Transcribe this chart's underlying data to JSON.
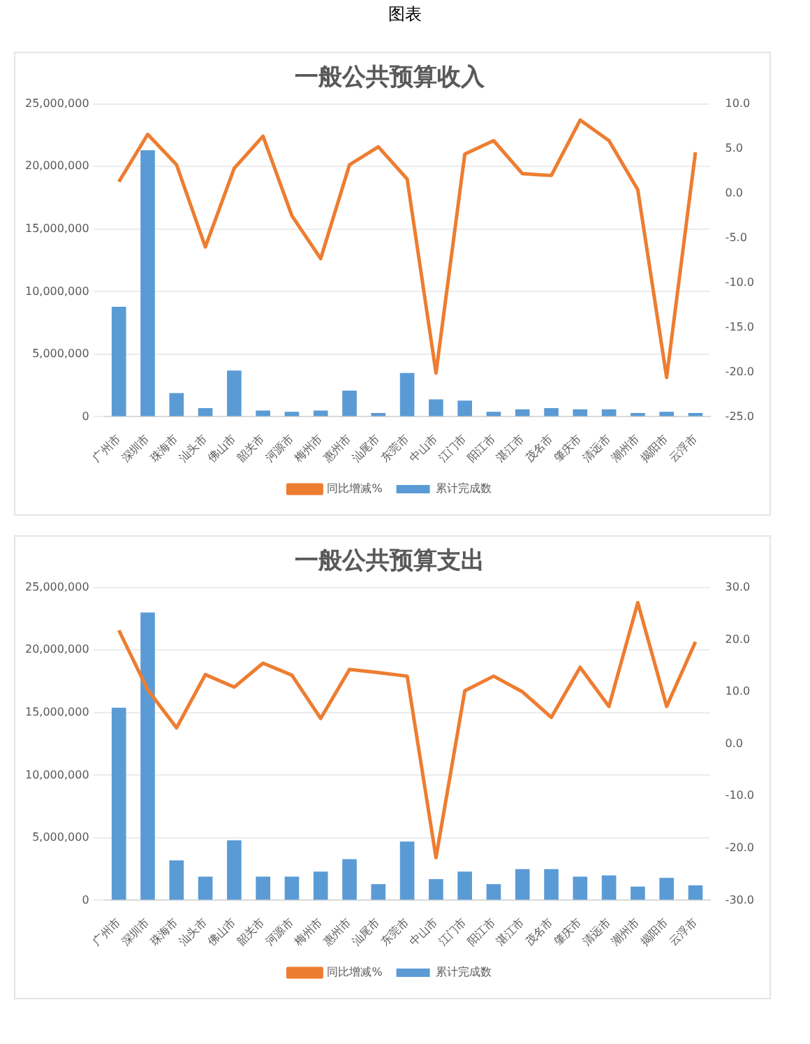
{
  "chart_data": [
    {
      "type": "bar",
      "title": "一般公共预算收入",
      "annotations": [
        "图表"
      ],
      "categories": [
        "广州市",
        "深圳市",
        "珠海市",
        "汕头市",
        "佛山市",
        "韶关市",
        "河源市",
        "梅州市",
        "惠州市",
        "汕尾市",
        "东莞市",
        "中山市",
        "江门市",
        "阳江市",
        "湛江市",
        "茂名市",
        "肇庆市",
        "清远市",
        "潮州市",
        "揭阳市",
        "云浮市"
      ],
      "series": [
        {
          "name": "累计完成数",
          "color": "#5b9bd5",
          "values": [
            8800000,
            21300000,
            1900000,
            700000,
            3700000,
            500000,
            400000,
            500000,
            2100000,
            300000,
            3500000,
            1400000,
            1300000,
            400000,
            600000,
            700000,
            600000,
            600000,
            300000,
            400000,
            300000
          ]
        },
        {
          "name": "同比增减%",
          "type": "line",
          "axis": "y2",
          "color": "#ed7d31",
          "values": [
            1.3,
            6.6,
            3.2,
            -6.0,
            2.8,
            6.4,
            -2.5,
            -7.3,
            3.2,
            5.2,
            1.6,
            -20.1,
            4.4,
            5.9,
            2.2,
            2.0,
            8.2,
            5.9,
            0.4,
            -20.6,
            4.6
          ]
        }
      ],
      "ylim": [
        0,
        25000000
      ],
      "yticks": [
        {
          "value": 0,
          "label": "0"
        },
        {
          "value": 5000000,
          "label": "5,000,000"
        },
        {
          "value": 10000000,
          "label": "10,000,000"
        },
        {
          "value": 15000000,
          "label": "15,000,000"
        },
        {
          "value": 20000000,
          "label": "20,000,000"
        },
        {
          "value": 25000000,
          "label": "25,000,000"
        }
      ],
      "y2lim": [
        -25,
        10
      ],
      "y2ticks": [
        {
          "value": -25,
          "label": "-25.0"
        },
        {
          "value": -20,
          "label": "-20.0"
        },
        {
          "value": -15,
          "label": "-15.0"
        },
        {
          "value": -10,
          "label": "-10.0"
        },
        {
          "value": -5,
          "label": "-5.0"
        },
        {
          "value": 0,
          "label": "0.0"
        },
        {
          "value": 5,
          "label": "5.0"
        },
        {
          "value": 10,
          "label": "10.0"
        }
      ],
      "grid": "y",
      "legend": "bottom"
    },
    {
      "type": "bar",
      "title": "一般公共预算支出",
      "categories": [
        "广州市",
        "深圳市",
        "珠海市",
        "汕头市",
        "佛山市",
        "韶关市",
        "河源市",
        "梅州市",
        "惠州市",
        "汕尾市",
        "东莞市",
        "中山市",
        "江门市",
        "阳江市",
        "湛江市",
        "茂名市",
        "肇庆市",
        "清远市",
        "潮州市",
        "揭阳市",
        "云浮市"
      ],
      "series": [
        {
          "name": "累计完成数",
          "color": "#5b9bd5",
          "values": [
            15400000,
            23000000,
            3200000,
            1900000,
            4800000,
            1900000,
            1900000,
            2300000,
            3300000,
            1300000,
            4700000,
            1700000,
            2300000,
            1300000,
            2500000,
            2500000,
            1900000,
            2000000,
            1100000,
            1800000,
            1200000
          ]
        },
        {
          "name": "同比增减%",
          "type": "line",
          "axis": "y2",
          "color": "#ed7d31",
          "values": [
            21.8,
            10.4,
            3.1,
            13.3,
            10.9,
            15.5,
            13.2,
            4.9,
            14.3,
            13.7,
            13.0,
            -21.8,
            10.2,
            13.0,
            10.0,
            5.1,
            14.7,
            7.2,
            27.1,
            7.2,
            19.6
          ]
        }
      ],
      "ylim": [
        0,
        25000000
      ],
      "yticks": [
        {
          "value": 0,
          "label": "0"
        },
        {
          "value": 5000000,
          "label": "5,000,000"
        },
        {
          "value": 10000000,
          "label": "10,000,000"
        },
        {
          "value": 15000000,
          "label": "15,000,000"
        },
        {
          "value": 20000000,
          "label": "20,000,000"
        },
        {
          "value": 25000000,
          "label": "25,000,000"
        }
      ],
      "y2lim": [
        -30,
        30
      ],
      "y2ticks": [
        {
          "value": -30,
          "label": "-30.0"
        },
        {
          "value": -20,
          "label": "-20.0"
        },
        {
          "value": -10,
          "label": "-10.0"
        },
        {
          "value": 0,
          "label": "0.0"
        },
        {
          "value": 10,
          "label": "10.0"
        },
        {
          "value": 20,
          "label": "20.0"
        },
        {
          "value": 30,
          "label": "30.0"
        }
      ],
      "grid": "y",
      "legend": "bottom"
    }
  ]
}
